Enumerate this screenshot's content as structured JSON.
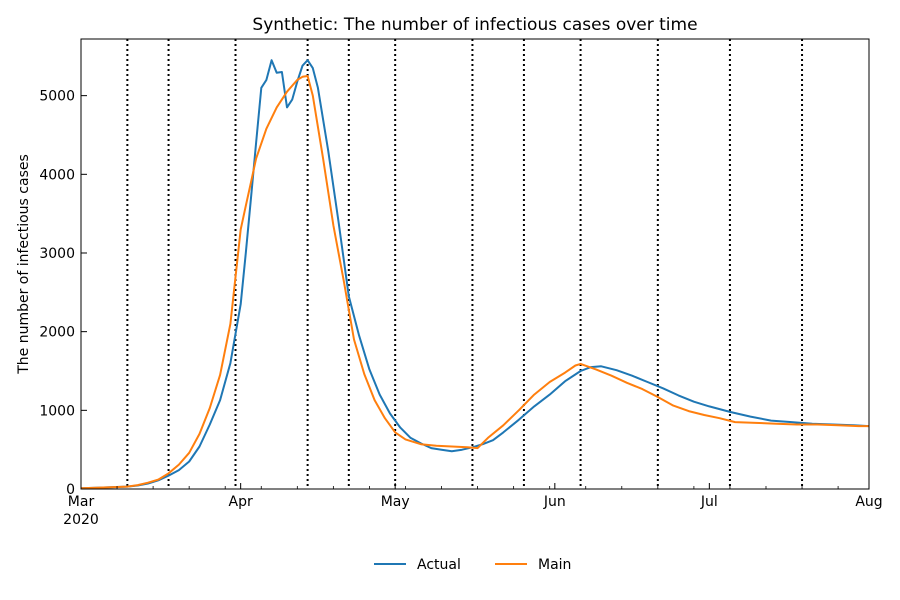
{
  "chart_data": {
    "type": "line",
    "title": "Synthetic: The number of infectious cases over time",
    "xlabel": "",
    "ylabel": "The number of infectious cases",
    "xlim": [
      "2020-03-01",
      "2020-08-01"
    ],
    "ylim": [
      0,
      5720
    ],
    "x_ticks": [
      {
        "date": "2020-03-01",
        "label": "Mar",
        "sublabel": "2020"
      },
      {
        "date": "2020-04-01",
        "label": "Apr",
        "sublabel": ""
      },
      {
        "date": "2020-05-01",
        "label": "May",
        "sublabel": ""
      },
      {
        "date": "2020-06-01",
        "label": "Jun",
        "sublabel": ""
      },
      {
        "date": "2020-07-01",
        "label": "Jul",
        "sublabel": ""
      },
      {
        "date": "2020-08-01",
        "label": "Aug",
        "sublabel": ""
      }
    ],
    "y_ticks": [
      0,
      1000,
      2000,
      3000,
      4000,
      5000
    ],
    "vlines": [
      "2020-03-10",
      "2020-03-18",
      "2020-03-31",
      "2020-04-14",
      "2020-04-22",
      "2020-05-01",
      "2020-05-16",
      "2020-05-26",
      "2020-06-06",
      "2020-06-21",
      "2020-07-05",
      "2020-07-19"
    ],
    "grid": false,
    "legend_position": "bottom-center",
    "series": [
      {
        "name": "Actual",
        "color": "#1f77b4",
        "points": [
          [
            "2020-03-01",
            10
          ],
          [
            "2020-03-04",
            15
          ],
          [
            "2020-03-08",
            25
          ],
          [
            "2020-03-10",
            30
          ],
          [
            "2020-03-12",
            45
          ],
          [
            "2020-03-14",
            70
          ],
          [
            "2020-03-16",
            110
          ],
          [
            "2020-03-18",
            170
          ],
          [
            "2020-03-20",
            240
          ],
          [
            "2020-03-22",
            350
          ],
          [
            "2020-03-24",
            540
          ],
          [
            "2020-03-26",
            820
          ],
          [
            "2020-03-28",
            1130
          ],
          [
            "2020-03-30",
            1600
          ],
          [
            "2020-04-01",
            2350
          ],
          [
            "2020-04-02",
            3000
          ],
          [
            "2020-04-03",
            3700
          ],
          [
            "2020-04-04",
            4400
          ],
          [
            "2020-04-05",
            5100
          ],
          [
            "2020-04-06",
            5200
          ],
          [
            "2020-04-07",
            5450
          ],
          [
            "2020-04-08",
            5290
          ],
          [
            "2020-04-09",
            5300
          ],
          [
            "2020-04-10",
            4850
          ],
          [
            "2020-04-11",
            4950
          ],
          [
            "2020-04-12",
            5180
          ],
          [
            "2020-04-13",
            5380
          ],
          [
            "2020-04-14",
            5450
          ],
          [
            "2020-04-15",
            5350
          ],
          [
            "2020-04-16",
            5100
          ],
          [
            "2020-04-18",
            4300
          ],
          [
            "2020-04-20",
            3400
          ],
          [
            "2020-04-22",
            2450
          ],
          [
            "2020-04-24",
            1950
          ],
          [
            "2020-04-26",
            1520
          ],
          [
            "2020-04-28",
            1200
          ],
          [
            "2020-04-30",
            960
          ],
          [
            "2020-05-02",
            780
          ],
          [
            "2020-05-04",
            650
          ],
          [
            "2020-05-06",
            580
          ],
          [
            "2020-05-08",
            520
          ],
          [
            "2020-05-10",
            500
          ],
          [
            "2020-05-12",
            480
          ],
          [
            "2020-05-14",
            500
          ],
          [
            "2020-05-16",
            530
          ],
          [
            "2020-05-18",
            570
          ],
          [
            "2020-05-20",
            620
          ],
          [
            "2020-05-22",
            720
          ],
          [
            "2020-05-25",
            880
          ],
          [
            "2020-05-28",
            1050
          ],
          [
            "2020-05-31",
            1200
          ],
          [
            "2020-06-03",
            1370
          ],
          [
            "2020-06-06",
            1500
          ],
          [
            "2020-06-08",
            1550
          ],
          [
            "2020-06-10",
            1560
          ],
          [
            "2020-06-13",
            1510
          ],
          [
            "2020-06-16",
            1440
          ],
          [
            "2020-06-19",
            1360
          ],
          [
            "2020-06-22",
            1280
          ],
          [
            "2020-06-25",
            1190
          ],
          [
            "2020-06-28",
            1110
          ],
          [
            "2020-07-01",
            1050
          ],
          [
            "2020-07-05",
            980
          ],
          [
            "2020-07-09",
            920
          ],
          [
            "2020-07-13",
            870
          ],
          [
            "2020-07-17",
            850
          ],
          [
            "2020-07-21",
            830
          ],
          [
            "2020-07-25",
            820
          ],
          [
            "2020-07-29",
            810
          ],
          [
            "2020-08-01",
            800
          ]
        ]
      },
      {
        "name": "Main",
        "color": "#ff7f0e",
        "points": [
          [
            "2020-03-01",
            10
          ],
          [
            "2020-03-04",
            15
          ],
          [
            "2020-03-08",
            25
          ],
          [
            "2020-03-10",
            30
          ],
          [
            "2020-03-12",
            50
          ],
          [
            "2020-03-14",
            80
          ],
          [
            "2020-03-16",
            120
          ],
          [
            "2020-03-18",
            200
          ],
          [
            "2020-03-20",
            310
          ],
          [
            "2020-03-22",
            460
          ],
          [
            "2020-03-24",
            700
          ],
          [
            "2020-03-26",
            1030
          ],
          [
            "2020-03-28",
            1450
          ],
          [
            "2020-03-30",
            2100
          ],
          [
            "2020-04-01",
            3300
          ],
          [
            "2020-04-02",
            3600
          ],
          [
            "2020-04-03",
            3900
          ],
          [
            "2020-04-04",
            4200
          ],
          [
            "2020-04-06",
            4580
          ],
          [
            "2020-04-08",
            4850
          ],
          [
            "2020-04-10",
            5050
          ],
          [
            "2020-04-12",
            5200
          ],
          [
            "2020-04-13",
            5240
          ],
          [
            "2020-04-14",
            5250
          ],
          [
            "2020-04-15",
            5000
          ],
          [
            "2020-04-17",
            4200
          ],
          [
            "2020-04-19",
            3350
          ],
          [
            "2020-04-21",
            2650
          ],
          [
            "2020-04-23",
            1900
          ],
          [
            "2020-04-25",
            1460
          ],
          [
            "2020-04-27",
            1130
          ],
          [
            "2020-04-29",
            900
          ],
          [
            "2020-05-01",
            720
          ],
          [
            "2020-05-03",
            630
          ],
          [
            "2020-05-06",
            570
          ],
          [
            "2020-05-09",
            550
          ],
          [
            "2020-05-12",
            540
          ],
          [
            "2020-05-15",
            530
          ],
          [
            "2020-05-17",
            520
          ],
          [
            "2020-05-19",
            650
          ],
          [
            "2020-05-22",
            810
          ],
          [
            "2020-05-25",
            1000
          ],
          [
            "2020-05-28",
            1200
          ],
          [
            "2020-05-31",
            1360
          ],
          [
            "2020-06-03",
            1480
          ],
          [
            "2020-06-05",
            1570
          ],
          [
            "2020-06-06",
            1590
          ],
          [
            "2020-06-09",
            1520
          ],
          [
            "2020-06-12",
            1440
          ],
          [
            "2020-06-15",
            1350
          ],
          [
            "2020-06-18",
            1270
          ],
          [
            "2020-06-21",
            1170
          ],
          [
            "2020-06-24",
            1060
          ],
          [
            "2020-06-27",
            990
          ],
          [
            "2020-06-30",
            940
          ],
          [
            "2020-07-03",
            900
          ],
          [
            "2020-07-06",
            850
          ],
          [
            "2020-07-10",
            840
          ],
          [
            "2020-07-14",
            830
          ],
          [
            "2020-07-18",
            820
          ],
          [
            "2020-07-22",
            820
          ],
          [
            "2020-07-26",
            810
          ],
          [
            "2020-07-30",
            800
          ],
          [
            "2020-08-01",
            800
          ]
        ]
      }
    ]
  }
}
